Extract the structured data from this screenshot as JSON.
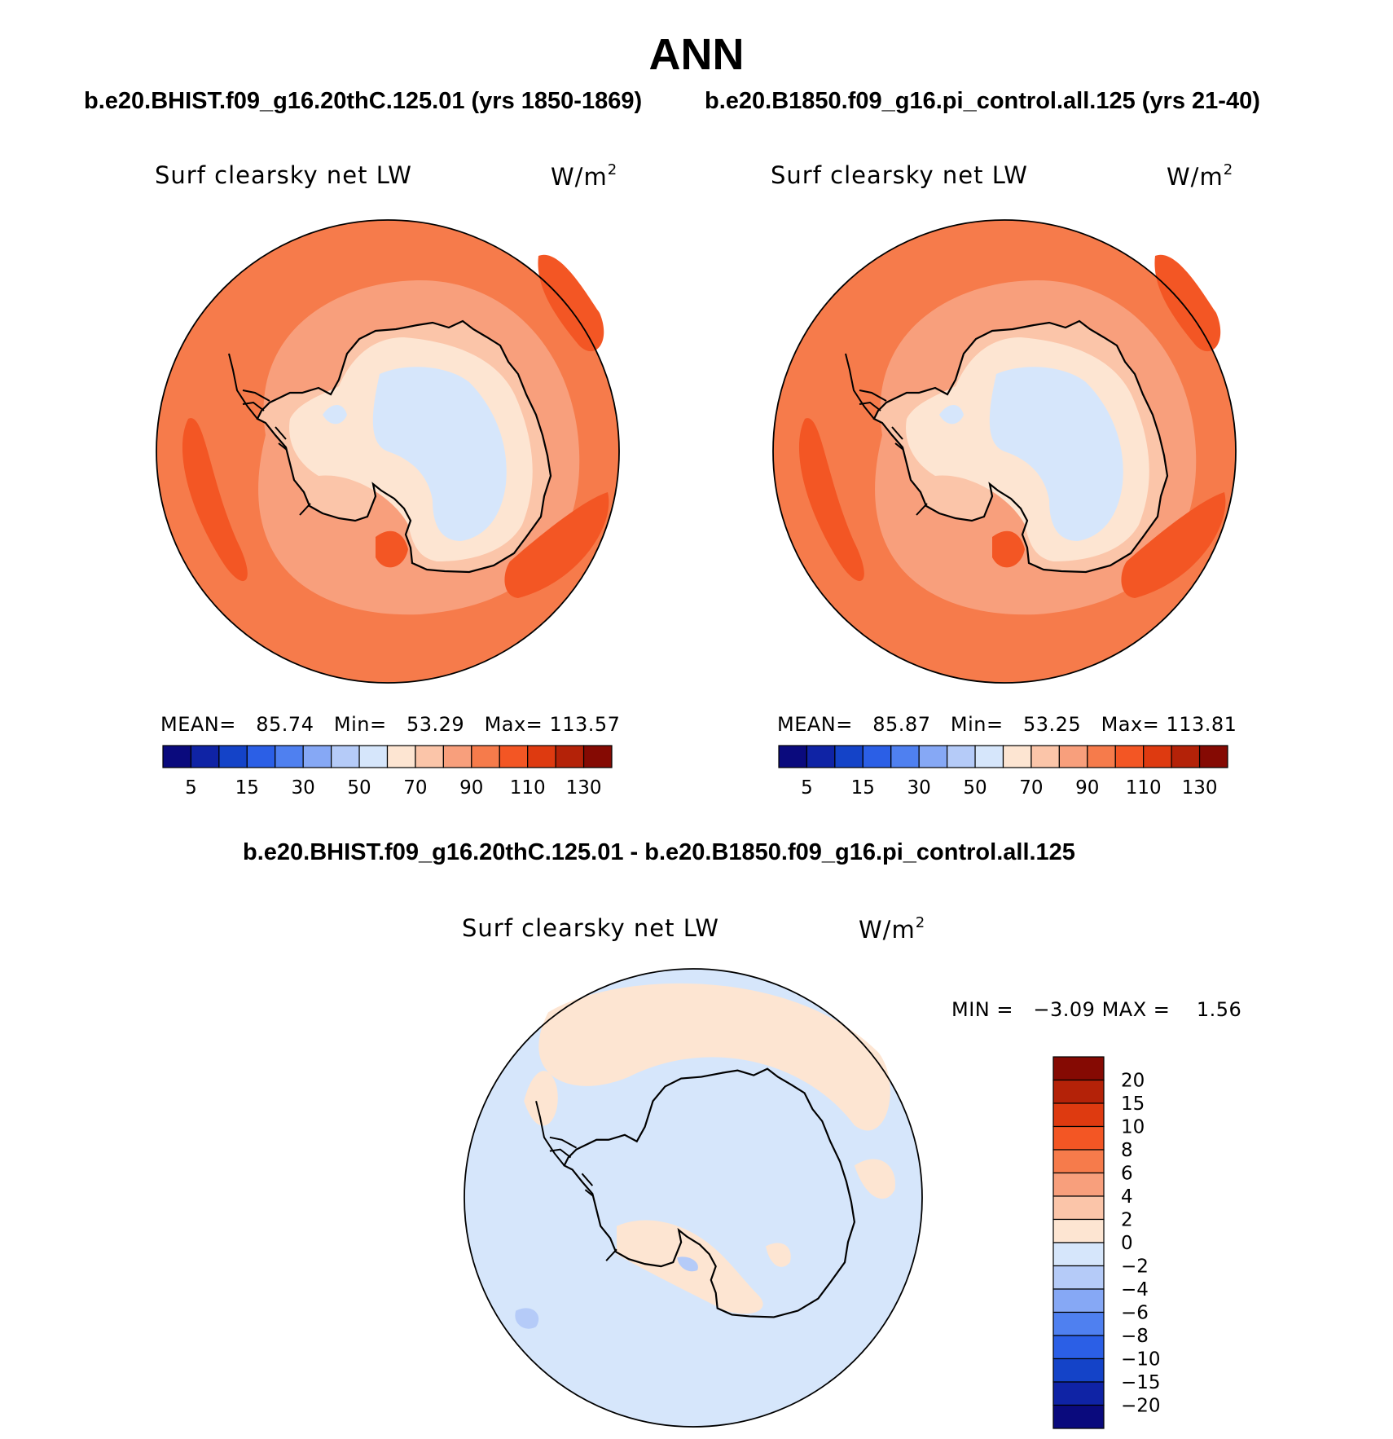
{
  "title": "ANN",
  "header_left": "b.e20.BHIST.f09_g16.20thC.125.01 (yrs 1850-1869)",
  "header_right": "b.e20.B1850.f09_g16.pi_control.all.125 (yrs 21-40)",
  "diff_header": "b.e20.BHIST.f09_g16.20thC.125.01 - b.e20.B1850.f09_g16.pi_control.all.125",
  "panels": [
    {
      "variable": "Surf clearsky net LW",
      "unit_base": "W/m",
      "unit_exp": "2",
      "stats": {
        "mean_label": "MEAN=",
        "mean": "85.74",
        "min_label": "Min=",
        "min": "53.29",
        "max_label": "Max=",
        "max": "113.57"
      }
    },
    {
      "variable": "Surf clearsky net LW",
      "unit_base": "W/m",
      "unit_exp": "2",
      "stats": {
        "mean_label": "MEAN=",
        "mean": "85.87",
        "min_label": "Min=",
        "min": "53.25",
        "max_label": "Max=",
        "max": "113.81"
      }
    }
  ],
  "diff_panel": {
    "variable": "Surf clearsky net LW",
    "unit_base": "W/m",
    "unit_exp": "2",
    "min_label": "MIN =",
    "min": "−3.09",
    "max_label": "MAX =",
    "max": "1.56"
  },
  "colorbar": {
    "colors": [
      "#0a0a7d",
      "#0f23a5",
      "#1443c8",
      "#2b5fe6",
      "#4f80f0",
      "#86a8f5",
      "#b5cbf8",
      "#d6e6fb",
      "#fde5d2",
      "#fbc5a9",
      "#f89f7c",
      "#f67b4b",
      "#f35624",
      "#de3a10",
      "#b42208",
      "#850a03"
    ],
    "labels": [
      "5",
      "15",
      "30",
      "50",
      "70",
      "90",
      "110",
      "130"
    ]
  },
  "diff_colorbar": {
    "colors": [
      "#850a03",
      "#b42208",
      "#de3a10",
      "#f35624",
      "#f67b4b",
      "#f89f7c",
      "#fbc5a9",
      "#fde5d2",
      "#d6e6fb",
      "#b5cbf8",
      "#86a8f5",
      "#4f80f0",
      "#2b5fe6",
      "#1443c8",
      "#0f23a5",
      "#0a0a7d"
    ],
    "labels": [
      "20",
      "15",
      "10",
      "8",
      "6",
      "4",
      "2",
      "0",
      "−2",
      "−4",
      "−6",
      "−8",
      "−10",
      "−15",
      "−20"
    ]
  },
  "field_colors": {
    "ocean_outer": "#f67b4b",
    "ocean_band": "#f89f7c",
    "ocean_max": "#f35624",
    "coast": "#fbc5a9",
    "interior": "#fde5d2",
    "plateau": "#d6e6fb",
    "diff_neg": "#d6e6fb",
    "diff_pos": "#fde5d2",
    "diff_neg2": "#b5cbf8"
  }
}
